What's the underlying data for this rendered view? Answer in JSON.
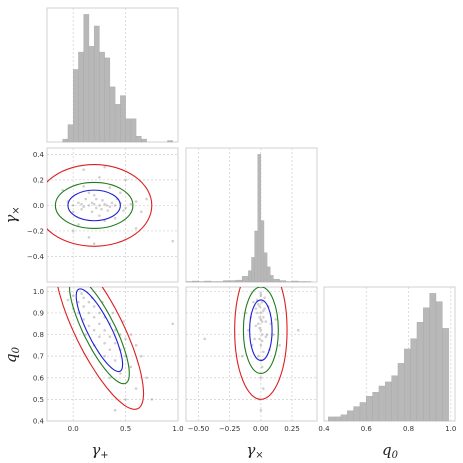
{
  "chart_data": {
    "type": "corner",
    "colors": {
      "hist": "#b8b8b8",
      "points": "#777777",
      "sigma1": "#1f1fd6",
      "sigma2": "#1e7b1e",
      "sigma3": "#dd1f1f"
    },
    "variables": [
      {
        "id": "gp",
        "label": "γ+",
        "label_base": "γ",
        "label_sub": "+",
        "range": [
          -0.25,
          1.0
        ],
        "ticks": [
          "0.0",
          "0.5",
          "1.0"
        ],
        "tick_values": [
          0.0,
          0.5,
          1.0
        ]
      },
      {
        "id": "gx",
        "label": "γ×",
        "label_base": "γ",
        "label_sub": "×",
        "range": [
          -0.6,
          0.45
        ],
        "ticks": [
          "0.4",
          "0.2",
          "0.0",
          "−0.2",
          "−0.4"
        ],
        "tick_values": [
          0.4,
          0.2,
          0.0,
          -0.2,
          -0.4
        ],
        "xticks": [
          "−0.50",
          "−0.25",
          "0.00",
          "0.25"
        ],
        "xtick_values": [
          -0.5,
          -0.25,
          0.0,
          0.25
        ]
      },
      {
        "id": "q0",
        "label": "q0",
        "label_base": "q",
        "label_sub": "0",
        "range": [
          0.4,
          1.02
        ],
        "ticks": [
          "1.0",
          "0.9",
          "0.8",
          "0.7",
          "0.6",
          "0.5",
          "0.4"
        ],
        "tick_values": [
          1.0,
          0.9,
          0.8,
          0.7,
          0.6,
          0.5,
          0.4
        ],
        "xticks": [
          "0.4",
          "0.6",
          "0.8",
          "1.0"
        ],
        "xtick_values": [
          0.4,
          0.6,
          0.8,
          1.0
        ]
      }
    ],
    "histograms": {
      "gp": {
        "bin_edges": [
          -0.1,
          -0.05,
          0.0,
          0.05,
          0.1,
          0.15,
          0.2,
          0.25,
          0.3,
          0.35,
          0.4,
          0.45,
          0.5,
          0.55,
          0.6,
          0.65,
          0.7,
          0.75,
          0.8,
          0.85,
          0.9,
          0.95,
          1.0
        ],
        "counts": [
          2,
          12,
          50,
          62,
          88,
          66,
          80,
          62,
          58,
          38,
          26,
          32,
          16,
          16,
          4,
          2,
          0,
          0,
          0,
          0,
          1,
          0
        ]
      },
      "gx": {
        "bin_edges": [
          -0.6,
          -0.55,
          -0.5,
          -0.45,
          -0.4,
          -0.35,
          -0.3,
          -0.25,
          -0.2,
          -0.15,
          -0.1,
          -0.075,
          -0.05,
          -0.025,
          0.0,
          0.025,
          0.05,
          0.075,
          0.1,
          0.15,
          0.2,
          0.25,
          0.3,
          0.35,
          0.4
        ],
        "counts": [
          1,
          2,
          1,
          2,
          1,
          1,
          3,
          3,
          4,
          12,
          24,
          52,
          108,
          270,
          130,
          62,
          32,
          14,
          6,
          3,
          1,
          2,
          1,
          1
        ]
      },
      "q0": {
        "bin_edges": [
          0.42,
          0.45,
          0.48,
          0.51,
          0.54,
          0.57,
          0.6,
          0.63,
          0.66,
          0.69,
          0.72,
          0.75,
          0.78,
          0.81,
          0.84,
          0.87,
          0.9,
          0.93,
          0.96,
          0.99
        ],
        "counts": [
          2,
          2,
          3,
          5,
          7,
          9,
          12,
          14,
          17,
          19,
          22,
          28,
          35,
          40,
          48,
          55,
          62,
          58,
          45
        ]
      }
    },
    "ellipses": [
      {
        "x": "gp",
        "y": "gx",
        "center": [
          0.2,
          0.0
        ],
        "sigma1": {
          "rx": 0.25,
          "ry": 0.12
        },
        "sigma2": {
          "rx": 0.37,
          "ry": 0.18
        },
        "sigma3": {
          "rx": 0.55,
          "ry": 0.32
        }
      },
      {
        "x": "gp",
        "y": "q0",
        "center": [
          0.25,
          0.82
        ],
        "angle_deg": -40,
        "sigma1": {
          "a": 0.28,
          "b": 0.085
        },
        "sigma2": {
          "a": 0.36,
          "b": 0.115
        },
        "sigma3": {
          "a": 0.53,
          "b": 0.175
        }
      },
      {
        "x": "gx",
        "y": "q0",
        "center": [
          0.0,
          0.82
        ],
        "sigma1": {
          "rx": 0.09,
          "ry": 0.14
        },
        "sigma2": {
          "rx": 0.14,
          "ry": 0.2
        },
        "sigma3": {
          "rx": 0.21,
          "ry": 0.32
        }
      }
    ],
    "scatter": {
      "gp_gx": [
        [
          0.05,
          0.02
        ],
        [
          0.1,
          -0.01
        ],
        [
          0.15,
          0.0
        ],
        [
          0.2,
          0.01
        ],
        [
          0.22,
          -0.02
        ],
        [
          0.25,
          0.0
        ],
        [
          0.3,
          0.01
        ],
        [
          0.35,
          -0.01
        ],
        [
          0.4,
          0.0
        ],
        [
          0.45,
          0.02
        ],
        [
          0.12,
          0.05
        ],
        [
          0.18,
          -0.05
        ],
        [
          0.28,
          0.04
        ],
        [
          0.33,
          -0.04
        ],
        [
          0.0,
          0.0
        ],
        [
          -0.05,
          0.03
        ],
        [
          0.08,
          -0.03
        ],
        [
          0.5,
          -0.02
        ],
        [
          0.55,
          0.01
        ],
        [
          0.6,
          0.03
        ],
        [
          0.2,
          0.08
        ],
        [
          0.25,
          -0.08
        ],
        [
          0.15,
          0.1
        ],
        [
          0.3,
          -0.12
        ],
        [
          0.1,
          0.15
        ],
        [
          0.35,
          0.14
        ],
        [
          0.05,
          -0.15
        ],
        [
          0.4,
          -0.1
        ],
        [
          0.45,
          0.1
        ],
        [
          0.0,
          -0.2
        ],
        [
          0.5,
          0.2
        ],
        [
          0.15,
          -0.25
        ],
        [
          0.25,
          0.22
        ],
        [
          0.6,
          -0.18
        ],
        [
          -0.1,
          0.12
        ],
        [
          0.7,
          0.05
        ],
        [
          0.3,
          0.3
        ],
        [
          0.2,
          -0.3
        ],
        [
          0.1,
          0.28
        ],
        [
          0.65,
          -0.05
        ],
        [
          0.95,
          -0.28
        ],
        [
          0.0,
          -0.05
        ],
        [
          0.42,
          0.05
        ],
        [
          0.18,
          0.02
        ],
        [
          0.27,
          -0.03
        ],
        [
          0.37,
          0.02
        ],
        [
          0.22,
          0.05
        ],
        [
          0.32,
          0.0
        ],
        [
          0.08,
          0.01
        ],
        [
          0.48,
          -0.04
        ]
      ],
      "gp_q0": [
        [
          0.0,
          0.98
        ],
        [
          0.05,
          0.95
        ],
        [
          0.1,
          0.93
        ],
        [
          0.15,
          0.9
        ],
        [
          0.2,
          0.88
        ],
        [
          0.25,
          0.85
        ],
        [
          0.3,
          0.82
        ],
        [
          0.35,
          0.79
        ],
        [
          0.4,
          0.76
        ],
        [
          0.45,
          0.73
        ],
        [
          0.1,
          0.97
        ],
        [
          0.15,
          0.95
        ],
        [
          0.2,
          0.93
        ],
        [
          0.25,
          0.9
        ],
        [
          0.3,
          0.88
        ],
        [
          0.35,
          0.85
        ],
        [
          0.4,
          0.82
        ],
        [
          0.45,
          0.8
        ],
        [
          0.5,
          0.78
        ],
        [
          0.05,
          0.9
        ],
        [
          0.1,
          0.87
        ],
        [
          0.15,
          0.84
        ],
        [
          0.2,
          0.82
        ],
        [
          0.25,
          0.79
        ],
        [
          0.3,
          0.76
        ],
        [
          0.35,
          0.73
        ],
        [
          0.0,
          0.92
        ],
        [
          0.08,
          0.99
        ],
        [
          0.18,
          0.97
        ],
        [
          0.28,
          0.95
        ],
        [
          0.38,
          0.9
        ],
        [
          0.48,
          0.86
        ],
        [
          0.55,
          0.8
        ],
        [
          0.6,
          0.75
        ],
        [
          0.5,
          0.7
        ],
        [
          0.4,
          0.68
        ],
        [
          0.3,
          0.7
        ],
        [
          0.2,
          0.75
        ],
        [
          0.12,
          0.8
        ],
        [
          -0.05,
          0.96
        ],
        [
          0.65,
          0.7
        ],
        [
          0.55,
          0.65
        ],
        [
          0.45,
          0.62
        ],
        [
          0.35,
          0.6
        ],
        [
          0.7,
          0.6
        ],
        [
          0.6,
          0.55
        ],
        [
          0.5,
          0.5
        ],
        [
          0.75,
          0.5
        ],
        [
          0.95,
          0.85
        ],
        [
          0.4,
          0.45
        ]
      ],
      "gx_q0": [
        [
          0.0,
          0.98
        ],
        [
          0.01,
          0.95
        ],
        [
          -0.01,
          0.93
        ],
        [
          0.0,
          0.9
        ],
        [
          0.02,
          0.88
        ],
        [
          -0.02,
          0.85
        ],
        [
          0.0,
          0.82
        ],
        [
          0.01,
          0.8
        ],
        [
          -0.01,
          0.78
        ],
        [
          0.0,
          0.75
        ],
        [
          0.03,
          0.92
        ],
        [
          -0.03,
          0.9
        ],
        [
          0.04,
          0.86
        ],
        [
          -0.04,
          0.84
        ],
        [
          0.05,
          0.8
        ],
        [
          -0.05,
          0.78
        ],
        [
          0.02,
          0.72
        ],
        [
          -0.02,
          0.7
        ],
        [
          0.0,
          0.68
        ],
        [
          0.01,
          0.65
        ],
        [
          -0.06,
          0.95
        ],
        [
          0.06,
          0.93
        ],
        [
          -0.08,
          0.88
        ],
        [
          0.08,
          0.85
        ],
        [
          -0.1,
          0.82
        ],
        [
          0.1,
          0.8
        ],
        [
          -0.07,
          0.75
        ],
        [
          0.07,
          0.73
        ],
        [
          0.0,
          0.6
        ],
        [
          0.02,
          0.55
        ],
        [
          -0.01,
          0.5
        ],
        [
          0.0,
          0.45
        ],
        [
          -0.12,
          0.9
        ],
        [
          0.12,
          0.87
        ],
        [
          0.15,
          0.75
        ],
        [
          -0.15,
          0.7
        ],
        [
          0.0,
          0.99
        ],
        [
          0.03,
          0.97
        ],
        [
          -0.03,
          0.96
        ],
        [
          0.3,
          0.82
        ],
        [
          -0.45,
          0.78
        ],
        [
          0.01,
          0.86
        ],
        [
          -0.01,
          0.88
        ],
        [
          0.02,
          0.91
        ],
        [
          -0.02,
          0.94
        ],
        [
          0.0,
          0.87
        ],
        [
          0.01,
          0.77
        ],
        [
          -0.01,
          0.83
        ],
        [
          0.04,
          0.79
        ],
        [
          -0.04,
          0.92
        ]
      ]
    }
  }
}
